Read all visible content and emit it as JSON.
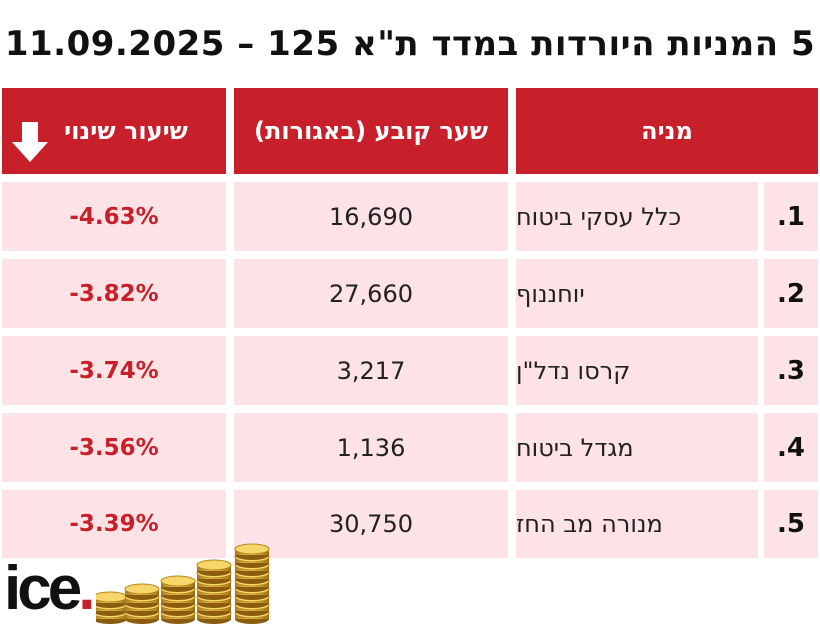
{
  "title": "5 המניות היורדות במדד ת\"א 125 – 11.09.2025",
  "headers": {
    "stock": "מניה",
    "price": "שער קובע (באגורות)",
    "change": "שיעור שינוי"
  },
  "rows": [
    {
      "num": "1.",
      "name": "כלל עסקי ביטוח",
      "price": "16,690",
      "change": "-4.63%"
    },
    {
      "num": "2.",
      "name": "יוחננוף",
      "price": "27,660",
      "change": "-3.82%"
    },
    {
      "num": "3.",
      "name": "קרסו נדל\"ן",
      "price": "3,217",
      "change": "-3.74%"
    },
    {
      "num": "4.",
      "name": "מגדל ביטוח",
      "price": "1,136",
      "change": "-3.56%"
    },
    {
      "num": "5.",
      "name": "מנורה מב החז",
      "price": "30,750",
      "change": "-3.39%"
    }
  ],
  "logo": {
    "text": "ice",
    "dot": "."
  },
  "icons": {
    "header_change": "arrow-down-icon",
    "decoration": "coin-stacks"
  },
  "colors": {
    "accent": "#c8202a",
    "row_bg": "#fde3e5",
    "header_text": "#ffffff"
  }
}
